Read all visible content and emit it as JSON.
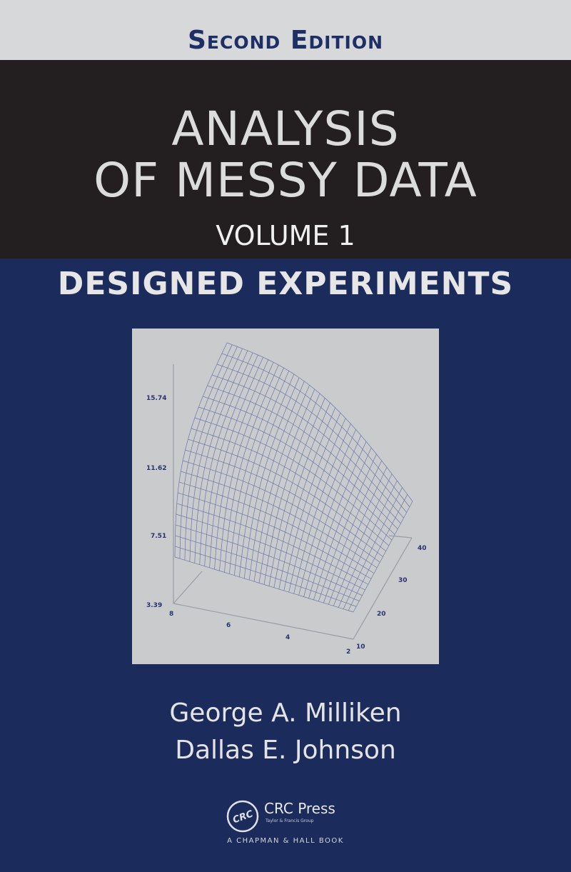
{
  "cover": {
    "edition": "Second Edition",
    "title_line1": "ANALYSIS",
    "title_line2": "OF MESSY DATA",
    "volume": "VOLUME 1",
    "subtitle": "DESIGNED EXPERIMENTS",
    "authors": [
      "George A. Milliken",
      "Dallas E. Johnson"
    ],
    "publisher": {
      "logo_text": "CRC",
      "name": "CRC Press",
      "group": "Taylor & Francis Group",
      "imprint": "A CHAPMAN & HALL BOOK"
    },
    "colors": {
      "top_band": "#d7d8da",
      "title_band": "#231f20",
      "body": "#1b2c5c",
      "edition_text": "#1e2f66",
      "mesh": "#6d78a8"
    }
  },
  "figure": {
    "type": "3d-surface-wireframe",
    "z_ticks": [
      "15.74",
      "11.62",
      "7.51",
      "3.39"
    ],
    "x_ticks": [
      "8",
      "6",
      "4",
      "2"
    ],
    "y_ticks": [
      "10",
      "20",
      "30",
      "40"
    ]
  }
}
